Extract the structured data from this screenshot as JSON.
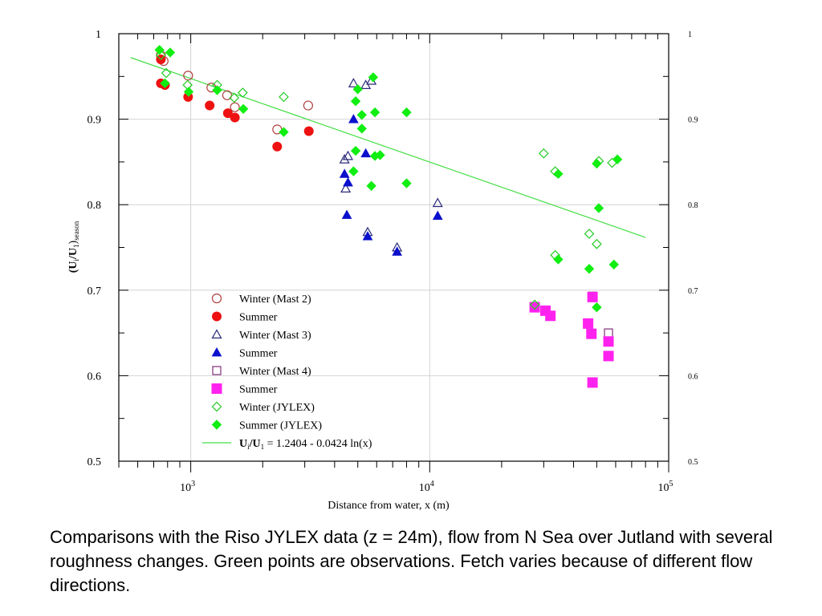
{
  "chart_data": {
    "type": "scatter",
    "xscale": "log",
    "xlim": [
      500,
      100000
    ],
    "ylim": [
      0.5,
      1.0
    ],
    "xlabel": "Distance from water, x (m)",
    "ylabel": "(U_i/U_1)_season",
    "y_ticks": [
      "0.5",
      "0.6",
      "0.7",
      "0.8",
      "0.9",
      "1"
    ],
    "x_ticks": [
      1000,
      10000,
      100000
    ],
    "grid": true,
    "legend_position": "lower-left",
    "series": [
      {
        "name": "Winter (Mast 2)",
        "marker": "circle-open",
        "color": "#b04040",
        "points": [
          [
            750,
            0.975
          ],
          [
            770,
            0.968
          ],
          [
            975,
            0.951
          ],
          [
            1220,
            0.937
          ],
          [
            1420,
            0.928
          ],
          [
            1530,
            0.914
          ],
          [
            2300,
            0.888
          ],
          [
            3100,
            0.916
          ]
        ]
      },
      {
        "name": "Summer",
        "marker": "circle-filled",
        "color": "#ee1111",
        "points": [
          [
            750,
            0.97
          ],
          [
            750,
            0.942
          ],
          [
            780,
            0.94
          ],
          [
            975,
            0.926
          ],
          [
            1200,
            0.916
          ],
          [
            1430,
            0.907
          ],
          [
            1530,
            0.902
          ],
          [
            2300,
            0.868
          ],
          [
            3120,
            0.886
          ]
        ]
      },
      {
        "name": "Winter (Mast 3)",
        "marker": "triangle-open",
        "color": "#2a2a7a",
        "points": [
          [
            4400,
            0.853
          ],
          [
            4550,
            0.857
          ],
          [
            4450,
            0.819
          ],
          [
            4800,
            0.942
          ],
          [
            5400,
            0.94
          ],
          [
            5700,
            0.945
          ],
          [
            5500,
            0.768
          ],
          [
            7300,
            0.75
          ],
          [
            10800,
            0.802
          ]
        ]
      },
      {
        "name": "Summer",
        "marker": "triangle-filled",
        "color": "#0a10cc",
        "points": [
          [
            4400,
            0.836
          ],
          [
            4550,
            0.826
          ],
          [
            4500,
            0.788
          ],
          [
            4800,
            0.9
          ],
          [
            5400,
            0.86
          ],
          [
            5500,
            0.763
          ],
          [
            7300,
            0.745
          ],
          [
            10800,
            0.787
          ]
        ]
      },
      {
        "name": "Winter (Mast 4)",
        "marker": "square-open",
        "color": "#80307a",
        "points": [
          [
            27500,
            0.681
          ],
          [
            48000,
            0.693
          ],
          [
            56000,
            0.65
          ]
        ]
      },
      {
        "name": "Summer",
        "marker": "square-filled",
        "color": "#ff22ee",
        "points": [
          [
            27500,
            0.68
          ],
          [
            30500,
            0.676
          ],
          [
            32000,
            0.67
          ],
          [
            46000,
            0.661
          ],
          [
            47500,
            0.649
          ],
          [
            48000,
            0.692
          ],
          [
            48000,
            0.592
          ],
          [
            56000,
            0.64
          ],
          [
            56000,
            0.623
          ]
        ]
      },
      {
        "name": "Winter (JYLEX)",
        "marker": "diamond-open",
        "color": "#22cc22",
        "points": [
          [
            750,
            0.975
          ],
          [
            790,
            0.954
          ],
          [
            970,
            0.94
          ],
          [
            1290,
            0.94
          ],
          [
            1520,
            0.925
          ],
          [
            1650,
            0.931
          ],
          [
            2450,
            0.926
          ],
          [
            30000,
            0.86
          ],
          [
            33500,
            0.839
          ],
          [
            33500,
            0.741
          ],
          [
            46500,
            0.766
          ],
          [
            50000,
            0.754
          ],
          [
            51000,
            0.851
          ],
          [
            58000,
            0.849
          ],
          [
            27500,
            0.683
          ]
        ]
      },
      {
        "name": "Summer (JYLEX)",
        "marker": "diamond-filled",
        "color": "#11ee11",
        "points": [
          [
            740,
            0.981
          ],
          [
            820,
            0.978
          ],
          [
            780,
            0.942
          ],
          [
            980,
            0.932
          ],
          [
            1290,
            0.934
          ],
          [
            1660,
            0.912
          ],
          [
            2450,
            0.885
          ],
          [
            4900,
            0.921
          ],
          [
            5000,
            0.935
          ],
          [
            5800,
            0.949
          ],
          [
            5200,
            0.905
          ],
          [
            5900,
            0.908
          ],
          [
            8000,
            0.908
          ],
          [
            5200,
            0.889
          ],
          [
            4900,
            0.863
          ],
          [
            5900,
            0.857
          ],
          [
            6200,
            0.858
          ],
          [
            4800,
            0.839
          ],
          [
            5700,
            0.822
          ],
          [
            8000,
            0.825
          ],
          [
            34500,
            0.836
          ],
          [
            46500,
            0.725
          ],
          [
            34500,
            0.736
          ],
          [
            50000,
            0.848
          ],
          [
            51000,
            0.796
          ],
          [
            50000,
            0.68
          ],
          [
            59000,
            0.73
          ],
          [
            61000,
            0.853
          ]
        ]
      }
    ],
    "fit_line": {
      "label_main": "U",
      "label_sub1": "i",
      "label_mid": "/U",
      "label_sub2": "1",
      "label_rest": " = 1.2404 - 0.0424 ln(x)",
      "a": 1.2404,
      "b": -0.0424,
      "x_range": [
        560,
        80000
      ],
      "color": "#44dd44"
    }
  },
  "caption": {
    "text": "Comparisons with the Riso JYLEX data (z = 24m), flow from N Sea over Jutland with several roughness changes.  Green points are observations. Fetch varies because of different flow directions."
  }
}
